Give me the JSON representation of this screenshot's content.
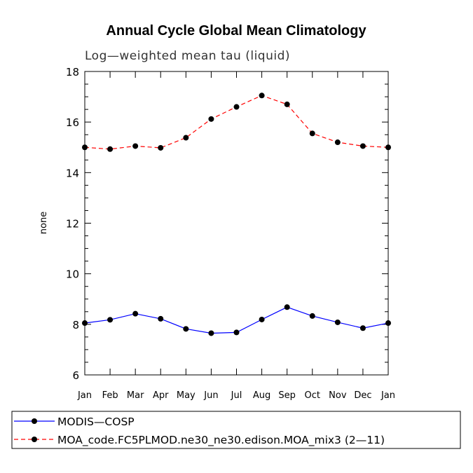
{
  "chart_data": {
    "type": "line",
    "title": "Annual Cycle Global Mean Climatology",
    "subtitle": "Log—weighted mean tau (liquid)",
    "xlabel": "",
    "ylabel": "none",
    "ylim": [
      6,
      18
    ],
    "yticks": [
      6,
      8,
      10,
      12,
      14,
      16,
      18
    ],
    "categories": [
      "Jan",
      "Feb",
      "Mar",
      "Apr",
      "May",
      "Jun",
      "Jul",
      "Aug",
      "Sep",
      "Oct",
      "Nov",
      "Dec",
      "Jan"
    ],
    "series": [
      {
        "name": "MODIS—COSP",
        "color": "#0000ff",
        "dash": "solid",
        "values": [
          8.05,
          8.18,
          8.42,
          8.22,
          7.82,
          7.65,
          7.68,
          8.19,
          8.68,
          8.33,
          8.08,
          7.85,
          8.05
        ]
      },
      {
        "name": "MOA_code.FC5PLMOD.ne30_ne30.edison.MOA_mix3 (2—11)",
        "color": "#ff0000",
        "dash": "dashed",
        "values": [
          15.0,
          14.93,
          15.05,
          14.98,
          15.38,
          16.12,
          16.6,
          17.05,
          16.7,
          15.55,
          15.2,
          15.05,
          15.0
        ]
      }
    ]
  }
}
